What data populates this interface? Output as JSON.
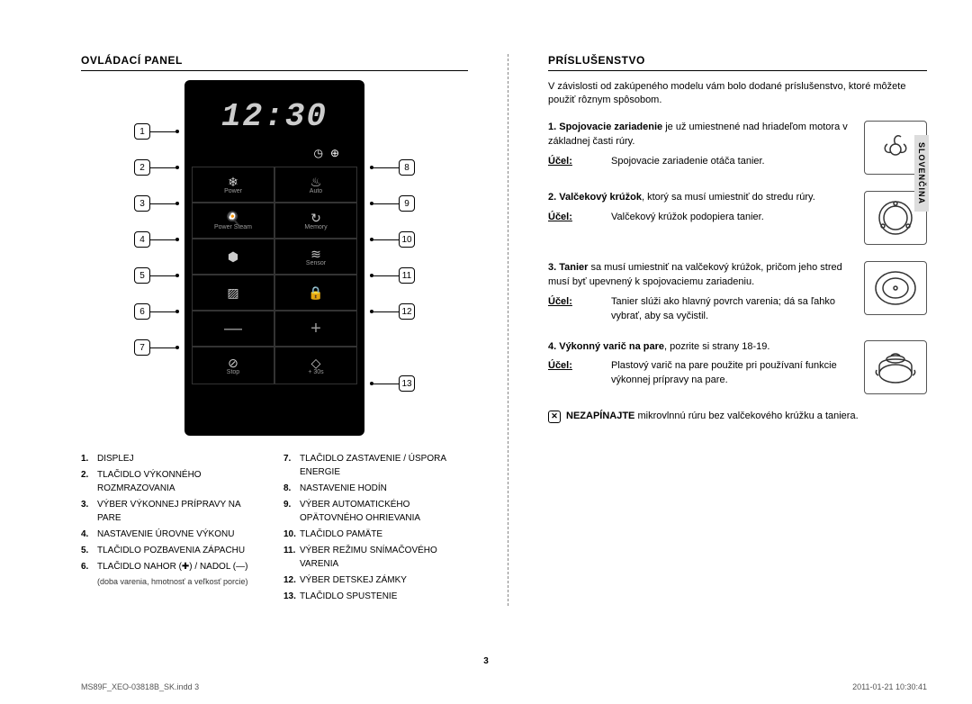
{
  "left": {
    "heading": "OVLÁDACÍ PANEL",
    "display_time": "12:30",
    "buttons": {
      "r1c1_label": "Power",
      "r1c1_icon": "❄",
      "r1c2_label": "Auto",
      "r1c2_icon": "♨",
      "r2c1_label": "Power Steam",
      "r2c1_icon": "🍳",
      "r2c2_label": "Memory",
      "r2c2_icon": "↻",
      "r3c1_label": "",
      "r3c1_icon": "⬢",
      "r3c2_label": "Sensor",
      "r3c2_icon": "≋",
      "r4c1_label": "",
      "r4c1_icon": "▨",
      "r4c2_label": "",
      "r4c2_icon": "🔒",
      "minus": "—",
      "plus": "+",
      "stop_label": "Stop",
      "stop_icon": "⊘",
      "start_label": "+ 30s",
      "start_icon": "◇"
    },
    "callouts_left": [
      "1",
      "2",
      "3",
      "4",
      "5",
      "6",
      "7"
    ],
    "callouts_right": [
      "8",
      "9",
      "10",
      "11",
      "12",
      "13"
    ],
    "legend_left": [
      {
        "n": "1.",
        "t": "DISPLEJ"
      },
      {
        "n": "2.",
        "t": "TLAČIDLO VÝKONNÉHO ROZMRAZOVANIA"
      },
      {
        "n": "3.",
        "t": "VÝBER VÝKONNEJ PRÍPRAVY NA PARE"
      },
      {
        "n": "4.",
        "t": "NASTAVENIE ÚROVNE VÝKONU"
      },
      {
        "n": "5.",
        "t": "TLAČIDLO POZBAVENIA ZÁPACHU"
      },
      {
        "n": "6.",
        "t": "TLAČIDLO NAHOR (✚) / NADOL (—)",
        "sub": "(doba varenia, hmotnosť a veľkosť porcie)"
      }
    ],
    "legend_right": [
      {
        "n": "7.",
        "t": "TLAČIDLO ZASTAVENIE / ÚSPORA ENERGIE"
      },
      {
        "n": "8.",
        "t": "NASTAVENIE HODÍN"
      },
      {
        "n": "9.",
        "t": "VÝBER AUTOMATICKÉHO OPÄTOVNÉHO OHRIEVANIA"
      },
      {
        "n": "10.",
        "t": "TLAČIDLO PAMÄTE"
      },
      {
        "n": "11.",
        "t": "VÝBER REŽIMU SNÍMAČOVÉHO VARENIA"
      },
      {
        "n": "12.",
        "t": "VÝBER DETSKEJ ZÁMKY"
      },
      {
        "n": "13.",
        "t": "TLAČIDLO SPUSTENIE"
      }
    ]
  },
  "right": {
    "heading": "PRÍSLUŠENSTVO",
    "intro": "V závislosti od zakúpeného modelu vám bolo dodané príslušenstvo, ktoré môžete použiť rôznym spôsobom.",
    "purpose_label": "Účel:",
    "items": [
      {
        "title_n": "1.  Spojovacie zariadenie",
        "title_rest": " je už umiestnené nad hriadeľom motora v základnej časti rúry.",
        "purpose": "Spojovacie zariadenie otáča tanier."
      },
      {
        "title_n": "2.  Valčekový krúžok",
        "title_rest": ", ktorý sa musí umiestniť do stredu rúry.",
        "purpose": "Valčekový krúžok podopiera tanier."
      },
      {
        "title_n": "3.  Tanier",
        "title_rest": " sa musí umiestniť na valčekový krúžok, pričom jeho stred musí byť upevnený k spojovaciemu zariadeniu.",
        "purpose": "Tanier slúži ako hlavný povrch varenia; dá sa ľahko vybrať, aby sa vyčistil."
      },
      {
        "title_n": "4.  Výkonný varič na pare",
        "title_rest": ", pozrite si strany 18-19.",
        "purpose": "Plastový varič na pare použite pri používaní funkcie výkonnej prípravy na pare."
      }
    ],
    "warning_strong": "NEZAPÍNAJTE",
    "warning_rest": " mikrovlnnú rúru bez valčekového krúžku a taniera."
  },
  "side_tab": "SLOVENČINA",
  "page_number": "3",
  "footer_left": "MS89F_XEO-03818B_SK.indd   3",
  "footer_right": "2011-01-21   10:30:41"
}
